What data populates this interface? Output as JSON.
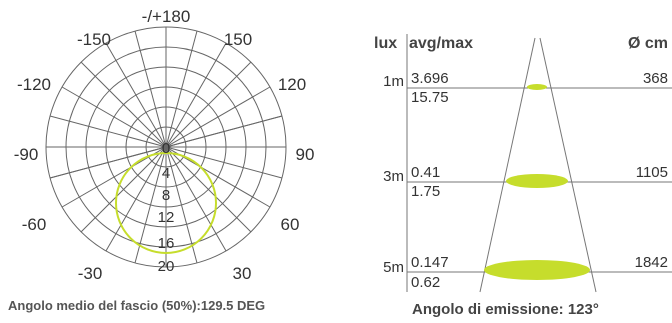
{
  "polar": {
    "angle_labels": [
      "-/+180",
      "-150",
      "150",
      "-120",
      "120",
      "-90",
      "90",
      "-60",
      "60",
      "-30",
      "30"
    ],
    "ring_labels": [
      "0",
      "4",
      "8",
      "12",
      "16",
      "20"
    ],
    "caption": "Angolo medio del fascio (50%):129.5 DEG",
    "curve_color": "#c6dd2c"
  },
  "cone": {
    "headers": {
      "lux": "lux",
      "avgmax": "avg/max",
      "diameter": "Ø cm"
    },
    "rows": [
      {
        "distance": "1m",
        "avg": "3.696",
        "max": "15.75",
        "diameter": "368"
      },
      {
        "distance": "3m",
        "avg": "0.41",
        "max": "1.75",
        "diameter": "1105"
      },
      {
        "distance": "5m",
        "avg": "0.147",
        "max": "0.62",
        "diameter": "1842"
      }
    ],
    "caption": "Angolo di emissione: 123°",
    "spot_color": "#c6dd2c"
  }
}
